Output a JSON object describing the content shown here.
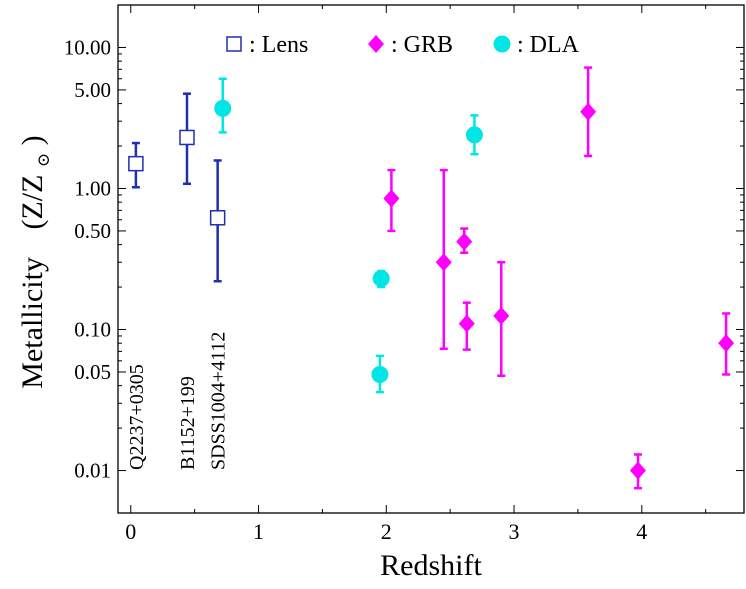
{
  "chart_data": {
    "type": "scatter",
    "title": "",
    "xlabel": "Redshift",
    "ylabel": "Metallicity",
    "ylabel_units": "(Z/Z",
    "ylabel_sun": "⊙",
    "ylabel_close": ")",
    "xlim": [
      -0.1,
      4.8
    ],
    "ylim": [
      0.005,
      20
    ],
    "yscale": "log",
    "x_ticks": [
      0,
      1,
      2,
      3,
      4
    ],
    "x_tick_labels": [
      "0",
      "1",
      "2",
      "3",
      "4"
    ],
    "y_ticks": [
      10,
      5,
      1,
      0.5,
      0.1,
      0.05,
      0.01
    ],
    "y_tick_labels": [
      "10.00",
      "5.00",
      "1.00",
      "0.50",
      "0.10",
      "0.05",
      "0.01"
    ],
    "grid": false,
    "legend_position": "top",
    "series": [
      {
        "name": "Lens",
        "legend_label": ": Lens",
        "marker": "open-square",
        "color": "#1f2fb0",
        "points": [
          {
            "x": 0.04,
            "y": 1.5,
            "ylow": 1.02,
            "yhigh": 2.1
          },
          {
            "x": 0.44,
            "y": 2.3,
            "ylow": 1.08,
            "yhigh": 4.7
          },
          {
            "x": 0.68,
            "y": 0.62,
            "ylow": 0.22,
            "yhigh": 1.58
          }
        ]
      },
      {
        "name": "GRB",
        "legend_label": ": GRB",
        "marker": "filled-diamond",
        "color": "#ff00ff",
        "points": [
          {
            "x": 2.04,
            "y": 0.85,
            "ylow": 0.5,
            "yhigh": 1.35
          },
          {
            "x": 2.45,
            "y": 0.3,
            "ylow": 0.073,
            "yhigh": 1.35
          },
          {
            "x": 2.61,
            "y": 0.42,
            "ylow": 0.35,
            "yhigh": 0.52
          },
          {
            "x": 2.63,
            "y": 0.11,
            "ylow": 0.072,
            "yhigh": 0.155
          },
          {
            "x": 2.9,
            "y": 0.125,
            "ylow": 0.047,
            "yhigh": 0.3
          },
          {
            "x": 3.58,
            "y": 3.5,
            "ylow": 1.7,
            "yhigh": 7.2
          },
          {
            "x": 3.97,
            "y": 0.01,
            "ylow": 0.0075,
            "yhigh": 0.013
          },
          {
            "x": 4.66,
            "y": 0.08,
            "ylow": 0.048,
            "yhigh": 0.13
          }
        ]
      },
      {
        "name": "DLA",
        "legend_label": ": DLA",
        "marker": "filled-circle",
        "color": "#00e5e5",
        "points": [
          {
            "x": 0.72,
            "y": 3.7,
            "ylow": 2.5,
            "yhigh": 6.0
          },
          {
            "x": 1.96,
            "y": 0.23,
            "ylow": 0.2,
            "yhigh": 0.26
          },
          {
            "x": 1.95,
            "y": 0.048,
            "ylow": 0.036,
            "yhigh": 0.065
          },
          {
            "x": 2.69,
            "y": 2.4,
            "ylow": 1.75,
            "yhigh": 3.3
          }
        ]
      }
    ],
    "annotations": [
      {
        "text": "Q2237+0305",
        "x": 0.04
      },
      {
        "text": "B1152+199",
        "x": 0.44
      },
      {
        "text": "SDSS1004+4112",
        "x": 0.68
      }
    ]
  }
}
